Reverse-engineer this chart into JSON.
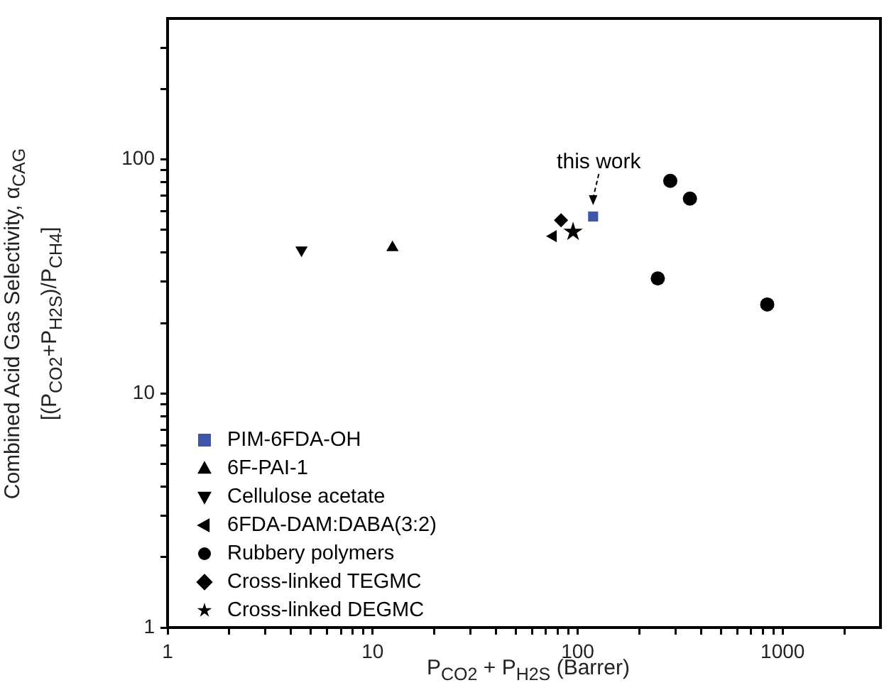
{
  "chart_data": {
    "type": "scatter",
    "xlabel": "P$_{CO2}$ + P$_{H2S}$ (Barrer)",
    "ylabel": "Combined Acid Gas Selectivity, α$_{CAG}$\n[(P$_{CO2}$+P$_{H2S}$)/P$_{CH4}$]",
    "log": "xy",
    "grid": false,
    "legend": "bottom left",
    "xlim": [
      1,
      3000
    ],
    "ylim": [
      1,
      400
    ],
    "xticks": [
      1,
      {
        "value": 2,
        "label": null
      },
      {
        "value": 3,
        "label": null
      },
      {
        "value": 4,
        "label": null
      },
      {
        "value": 5,
        "label": null
      },
      {
        "value": 6,
        "label": null
      },
      {
        "value": 7,
        "label": null
      },
      {
        "value": 8,
        "label": null
      },
      {
        "value": 9,
        "label": null
      },
      10,
      {
        "value": 20,
        "label": null
      },
      {
        "value": 30,
        "label": null
      },
      {
        "value": 40,
        "label": null
      },
      {
        "value": 50,
        "label": null
      },
      {
        "value": 60,
        "label": null
      },
      {
        "value": 70,
        "label": null
      },
      {
        "value": 80,
        "label": null
      },
      {
        "value": 90,
        "label": null
      },
      100,
      {
        "value": 200,
        "label": null
      },
      {
        "value": 300,
        "label": null
      },
      {
        "value": 400,
        "label": null
      },
      {
        "value": 500,
        "label": null
      },
      {
        "value": 600,
        "label": null
      },
      {
        "value": 700,
        "label": null
      },
      {
        "value": 800,
        "label": null
      },
      {
        "value": 900,
        "label": null
      },
      1000,
      {
        "value": 2000,
        "label": null
      }
    ],
    "yticks": [
      1,
      {
        "value": 2,
        "label": null
      },
      {
        "value": 3,
        "label": null
      },
      {
        "value": 4,
        "label": null
      },
      {
        "value": 5,
        "label": null
      },
      {
        "value": 6,
        "label": null
      },
      {
        "value": 7,
        "label": null
      },
      {
        "value": 8,
        "label": null
      },
      {
        "value": 9,
        "label": null
      },
      10,
      {
        "value": 20,
        "label": null
      },
      {
        "value": 30,
        "label": null
      },
      {
        "value": 40,
        "label": null
      },
      {
        "value": 50,
        "label": null
      },
      {
        "value": 60,
        "label": null
      },
      {
        "value": 70,
        "label": null
      },
      {
        "value": 80,
        "label": null
      },
      {
        "value": 90,
        "label": null
      },
      100,
      {
        "value": 200,
        "label": null
      },
      {
        "value": 300,
        "label": null
      }
    ],
    "annotations": [
      {
        "text": "this work",
        "x": 119,
        "y": 57
      }
    ],
    "series": [
      {
        "name": "PIM-6FDA-OH",
        "color": "#3f56a8",
        "marker": "square",
        "x": [
          119
        ],
        "values": [
          57
        ]
      },
      {
        "name": "6F-PAI-1",
        "color": "#000000",
        "marker": "triangle",
        "x": [
          12.5
        ],
        "values": [
          42
        ]
      },
      {
        "name": "Cellulose acetate",
        "color": "#000000",
        "marker": "triangle-down",
        "x": [
          4.5
        ],
        "values": [
          41
        ]
      },
      {
        "name": "6FDA-DAM:DABA(3:2)",
        "color": "#000000",
        "marker": "triangle-left",
        "x": [
          76
        ],
        "values": [
          47
        ]
      },
      {
        "name": "Rubbery polymers",
        "color": "#000000",
        "marker": "circle",
        "x": [
          283,
          353,
          246,
          841
        ],
        "values": [
          81,
          68,
          31,
          24
        ]
      },
      {
        "name": "Cross-linked TEGMC",
        "color": "#000000",
        "marker": "diamond",
        "x": [
          83
        ],
        "values": [
          55
        ]
      },
      {
        "name": "Cross-linked DEGMC",
        "color": "#000000",
        "marker": "star",
        "x": [
          95
        ],
        "values": [
          49
        ]
      }
    ]
  }
}
